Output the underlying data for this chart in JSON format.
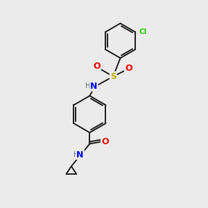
{
  "background_color": "#ebebeb",
  "bond_color": "#1a1a1a",
  "bond_width": 1.4,
  "atom_colors": {
    "C": "#1a1a1a",
    "N": "#0000ee",
    "O": "#ee0000",
    "S": "#bbaa00",
    "Cl": "#22cc00",
    "H": "#556655"
  },
  "figsize": [
    3.0,
    3.0
  ],
  "dpi": 100,
  "xlim": [
    0,
    10
  ],
  "ylim": [
    0,
    10
  ]
}
